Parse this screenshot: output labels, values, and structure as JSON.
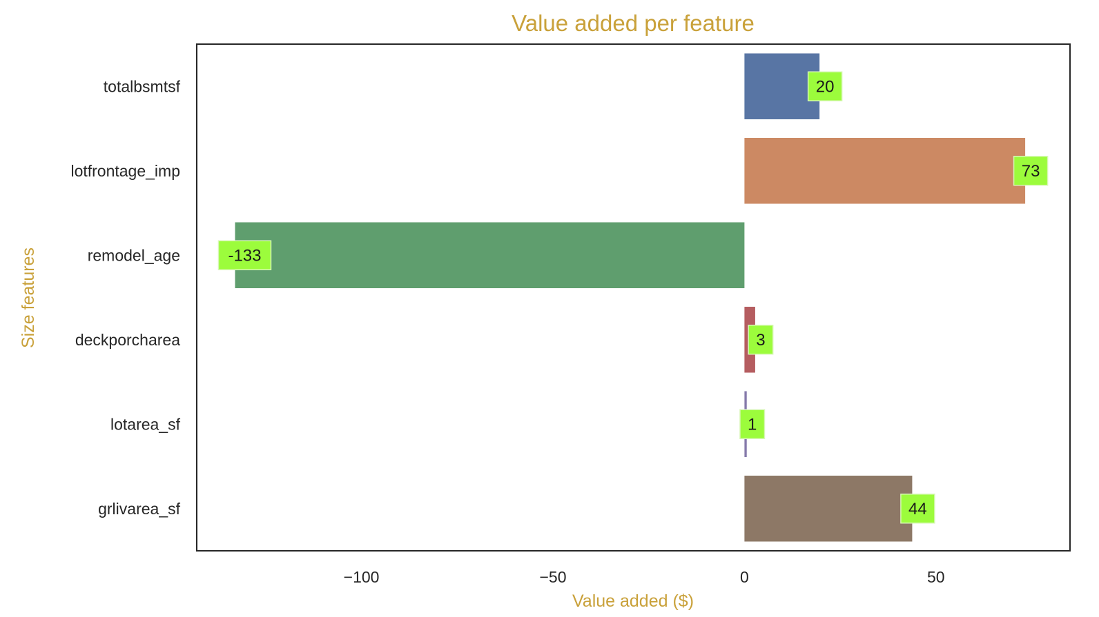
{
  "chart_data": {
    "type": "bar",
    "orientation": "horizontal",
    "title": "Value added per feature",
    "xlabel": "Value added ($)",
    "ylabel": "Size features",
    "categories": [
      "totalbsmtsf",
      "lotfrontage_imp",
      "remodel_age",
      "deckporcharea",
      "lotarea_sf",
      "grlivarea_sf"
    ],
    "values": [
      19.6,
      73.3,
      -133.0,
      2.8,
      0.6,
      43.8
    ],
    "data_labels": [
      "20",
      "73",
      "-133",
      "3",
      "1",
      "44"
    ],
    "bar_colors": [
      "#5875a4",
      "#cc8963",
      "#5f9e6e",
      "#b55d60",
      "#857aab",
      "#8d7866"
    ],
    "xlim": [
      -143,
      85
    ],
    "xticks": [
      -100,
      -50,
      0,
      50
    ],
    "xtick_labels": [
      "−100",
      "−50",
      "0",
      "50"
    ],
    "grid": false,
    "legend": "none",
    "text_color": "#c9a13a",
    "label_box_color": "#9cfc3c"
  }
}
